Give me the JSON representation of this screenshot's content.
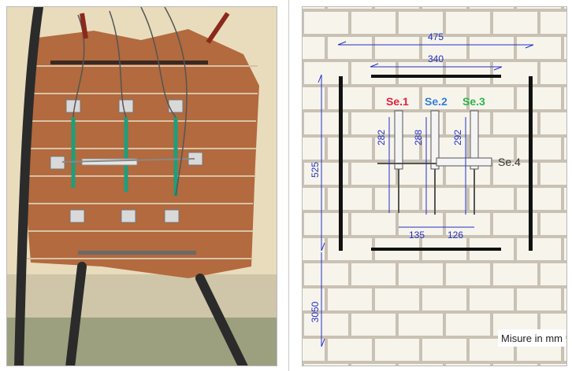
{
  "diagram": {
    "dimensions": {
      "outer_width": "475",
      "inner_width": "340",
      "height_panel": "525",
      "height_ground": "3050",
      "gauge1": "282",
      "gauge2": "288",
      "gauge3": "292",
      "spacing12": "135",
      "spacing23": "126"
    },
    "sensors": {
      "se1": "Se.1",
      "se2": "Se.2",
      "se3": "Se.3",
      "se4": "Se.4"
    },
    "note": "Misure in mm",
    "colors": {
      "se1": "#e0203a",
      "se2": "#2f7fd8",
      "se3": "#2ab54a",
      "dimension": "#2130c9",
      "brick_mortar": "#c9c2b4",
      "brick_face": "#f7f4ec"
    }
  },
  "photo": {
    "description_icon": "masonry-test-photo"
  }
}
